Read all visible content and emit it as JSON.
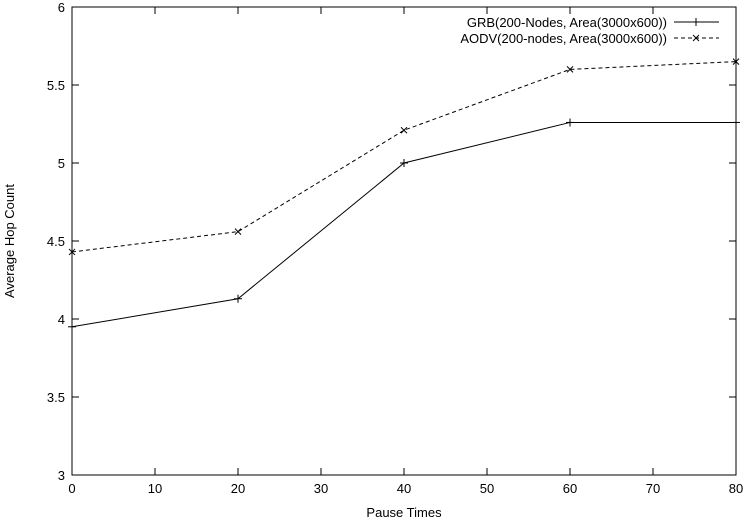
{
  "chart_data": {
    "type": "line",
    "title": "",
    "xlabel": "Pause Times",
    "ylabel": "Average Hop Count",
    "xlim": [
      0,
      80
    ],
    "ylim": [
      3,
      6
    ],
    "x_ticks": [
      "0",
      "10",
      "20",
      "30",
      "40",
      "50",
      "60",
      "70",
      "80"
    ],
    "y_ticks": [
      "3",
      "3.5",
      "4",
      "4.5",
      "5",
      "5.5",
      "6"
    ],
    "grid": false,
    "legend_position": "top-right",
    "x": [
      0,
      20,
      40,
      60,
      80
    ],
    "series": [
      {
        "name": "GRB(200-Nodes, Area(3000x600))",
        "marker": "plus",
        "line_style": "solid",
        "color": "#000000",
        "x": [
          0,
          20,
          40,
          60,
          80
        ],
        "values": [
          3.95,
          4.13,
          5.0,
          5.26,
          5.26
        ]
      },
      {
        "name": "AODV(200-nodes, Area(3000x600))",
        "marker": "cross",
        "line_style": "dashed",
        "color": "#000000",
        "x": [
          0,
          20,
          40,
          60,
          80
        ],
        "values": [
          4.43,
          4.56,
          5.21,
          5.6,
          5.65
        ]
      }
    ]
  }
}
